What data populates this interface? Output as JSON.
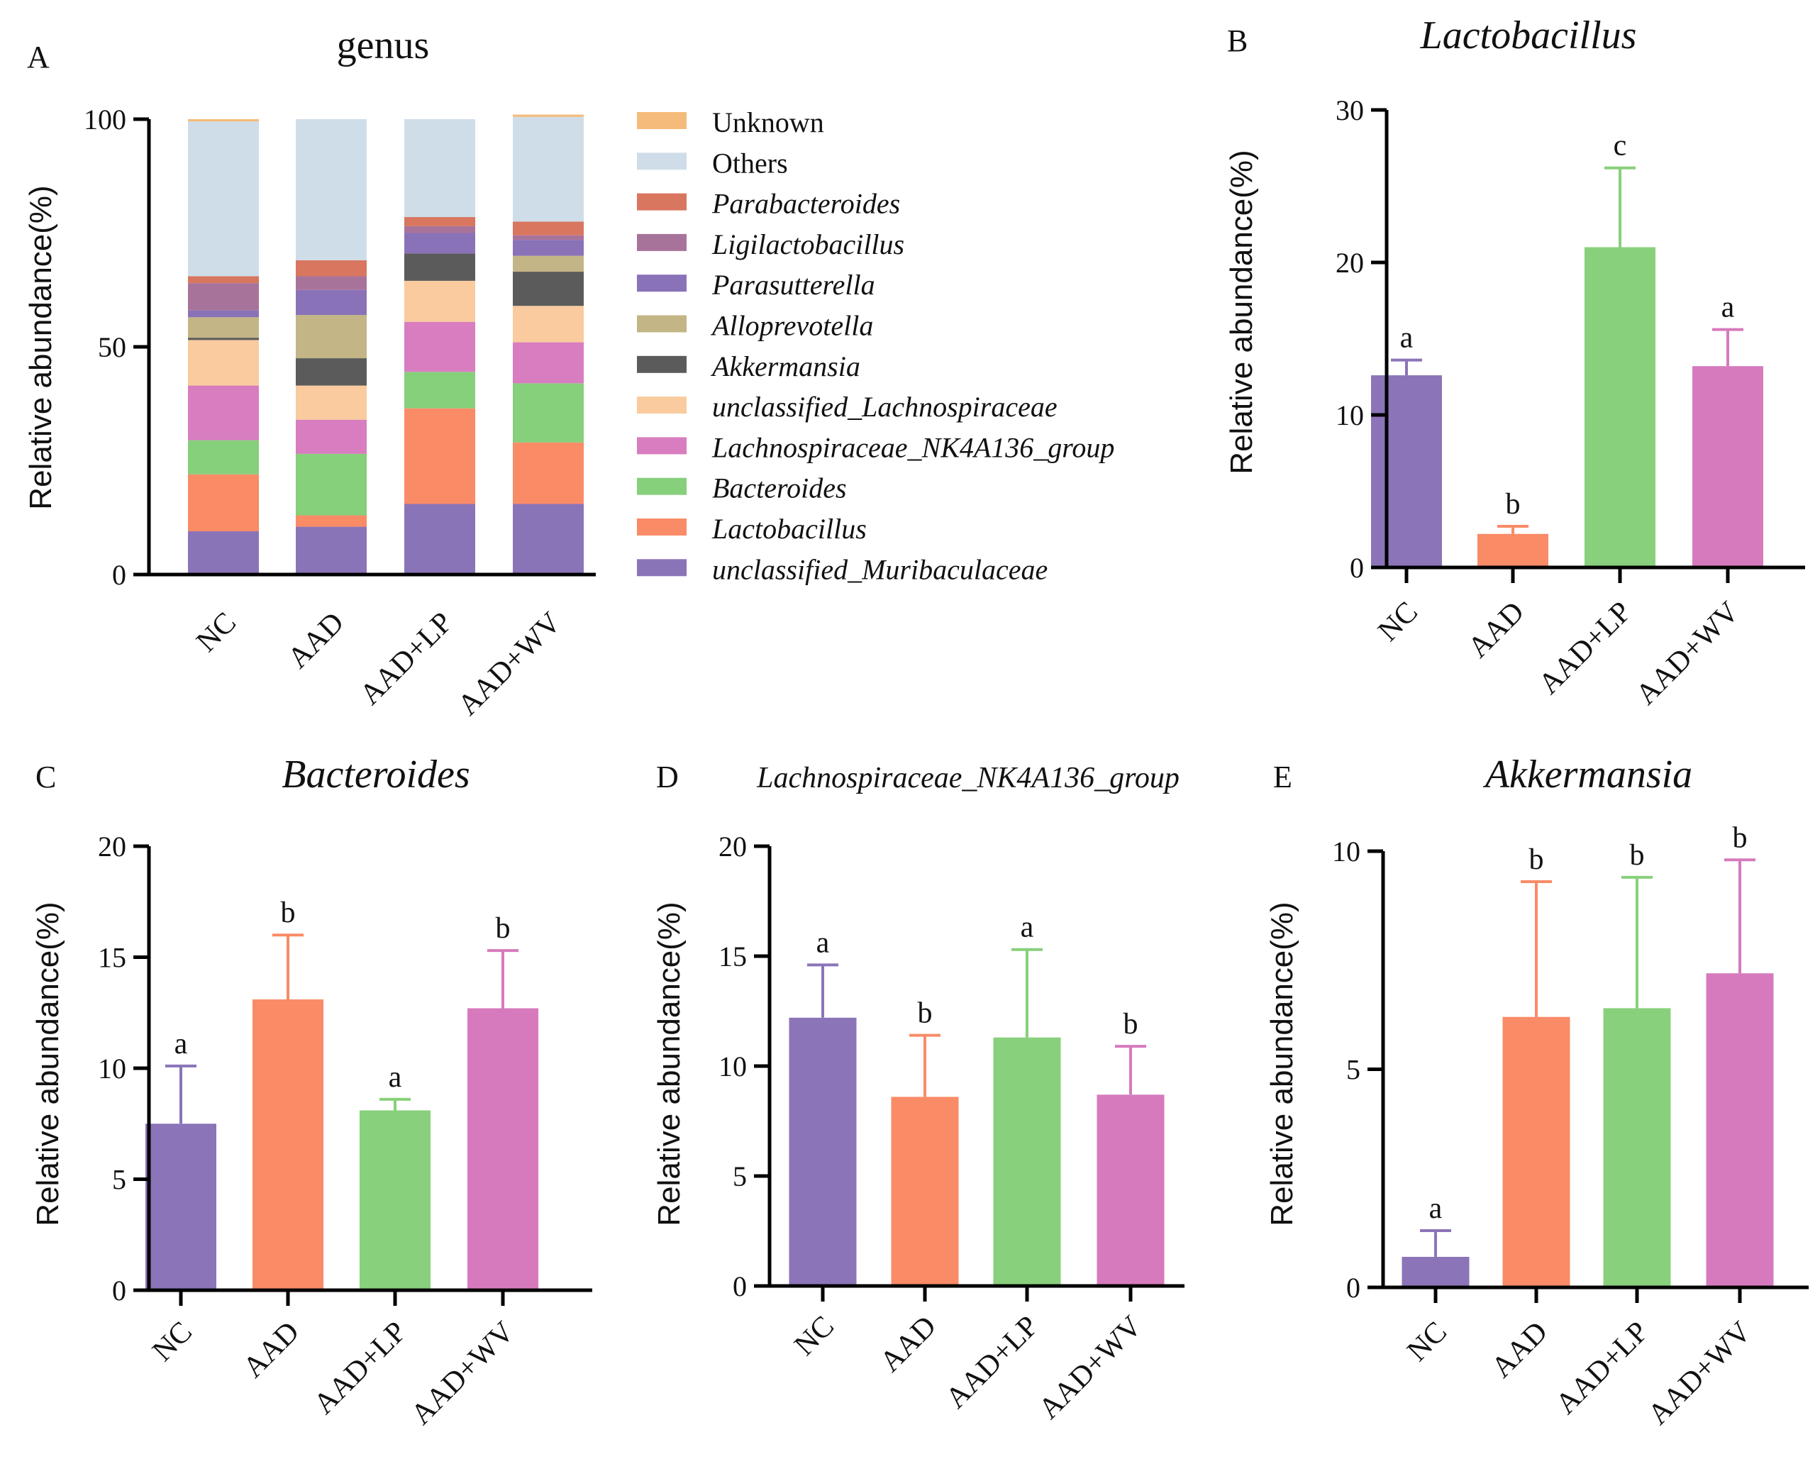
{
  "colors": {
    "NC": "#8B74B8",
    "AAD": "#F98B67",
    "AAD+LP": "#88D07B",
    "AAD+WV": "#D67ABD",
    "Unknown": "#F4BB7A",
    "Others": "#CFDDE8",
    "Parabacteroides": "#D9765F",
    "Ligilactobacillus": "#A8739B",
    "Parasutterella": "#8A72B8",
    "Alloprevotella": "#C3B585",
    "Akkermansia": "#5B5B5B",
    "unclassified_Lachnospiraceae": "#F9CB9E",
    "Lachnospiraceae_NK4A136_group": "#D87DBF",
    "Bacteroides": "#86CF7B",
    "Lactobacillus": "#F98B67",
    "unclassified_Muribaculaceae": "#8A74B8"
  },
  "chart_data": [
    {
      "panel": "A",
      "type": "bar",
      "stacked": true,
      "title": "genus",
      "ylabel": "Relative abundance(%)",
      "xlabel": "",
      "ylim": [
        0,
        100
      ],
      "yticks": [
        "0",
        "50",
        "100"
      ],
      "categories": [
        "NC",
        "AAD",
        "AAD+LP",
        "AAD+WV"
      ],
      "series": [
        {
          "name": "unclassified_Muribaculaceae",
          "italic": true,
          "values": [
            9.5,
            10.5,
            15.5,
            15.5
          ]
        },
        {
          "name": "Lactobacillus",
          "italic": true,
          "values": [
            12.5,
            2.5,
            21,
            13.5
          ]
        },
        {
          "name": "Bacteroides",
          "italic": true,
          "values": [
            7.5,
            13.5,
            8,
            13
          ]
        },
        {
          "name": "Lachnospiraceae_NK4A136_group",
          "italic": true,
          "values": [
            12,
            7.5,
            11,
            9
          ]
        },
        {
          "name": "unclassified_Lachnospiraceae",
          "italic": true,
          "values": [
            10,
            7.5,
            9,
            8
          ]
        },
        {
          "name": "Akkermansia",
          "italic": true,
          "values": [
            0.5,
            6,
            6,
            7.5
          ]
        },
        {
          "name": "Alloprevotella",
          "italic": true,
          "values": [
            4.5,
            9.5,
            0,
            3.5
          ]
        },
        {
          "name": "Parasutterella",
          "italic": true,
          "values": [
            1.5,
            5.5,
            4.5,
            3.5
          ]
        },
        {
          "name": "Ligilactobacillus",
          "italic": true,
          "values": [
            6,
            3,
            1.5,
            1
          ]
        },
        {
          "name": "Parabacteroides",
          "italic": true,
          "values": [
            1.5,
            3.5,
            2,
            3
          ]
        },
        {
          "name": "Others",
          "italic": false,
          "values": [
            34,
            31,
            21.5,
            23
          ]
        },
        {
          "name": "Unknown",
          "italic": false,
          "values": [
            0.5,
            0,
            0,
            0.5
          ]
        }
      ]
    },
    {
      "panel": "B",
      "type": "bar",
      "title": "Lactobacillus",
      "ylabel": "Relative abundance(%)",
      "ylim": [
        0,
        30
      ],
      "yticks": [
        "0",
        "10",
        "20",
        "30"
      ],
      "categories": [
        "NC",
        "AAD",
        "AAD+LP",
        "AAD+WV"
      ],
      "values": [
        12.6,
        2.2,
        21,
        13.2
      ],
      "errors": [
        1.0,
        0.5,
        5.2,
        2.4
      ],
      "significance": [
        "a",
        "b",
        "c",
        "a"
      ]
    },
    {
      "panel": "C",
      "type": "bar",
      "title": "Bacteroides",
      "ylabel": "Relative abundance(%)",
      "ylim": [
        0,
        20
      ],
      "yticks": [
        "0",
        "5",
        "10",
        "15",
        "20"
      ],
      "categories": [
        "NC",
        "AAD",
        "AAD+LP",
        "AAD+WV"
      ],
      "values": [
        7.5,
        13.1,
        8.1,
        12.7
      ],
      "errors": [
        2.6,
        2.9,
        0.5,
        2.6
      ],
      "significance": [
        "a",
        "b",
        "a",
        "b"
      ]
    },
    {
      "panel": "D",
      "type": "bar",
      "title": "Lachnospiraceae_NK4A136_group",
      "ylabel": "Relative abundance(%)",
      "ylim": [
        0,
        20
      ],
      "yticks": [
        "0",
        "5",
        "10",
        "15",
        "20"
      ],
      "categories": [
        "NC",
        "AAD",
        "AAD+LP",
        "AAD+WV"
      ],
      "values": [
        12.2,
        8.6,
        11.3,
        8.7
      ],
      "errors": [
        2.4,
        2.8,
        4.0,
        2.2
      ],
      "significance": [
        "a",
        "b",
        "a",
        "b"
      ]
    },
    {
      "panel": "E",
      "type": "bar",
      "title": "Akkermansia",
      "ylabel": "Relative abundance(%)",
      "ylim": [
        0,
        10
      ],
      "yticks": [
        "0",
        "5",
        "10"
      ],
      "categories": [
        "NC",
        "AAD",
        "AAD+LP",
        "AAD+WV"
      ],
      "values": [
        0.7,
        6.2,
        6.4,
        7.2
      ],
      "errors": [
        0.6,
        3.1,
        3.0,
        2.6
      ],
      "significance": [
        "a",
        "b",
        "b",
        "b"
      ]
    }
  ]
}
